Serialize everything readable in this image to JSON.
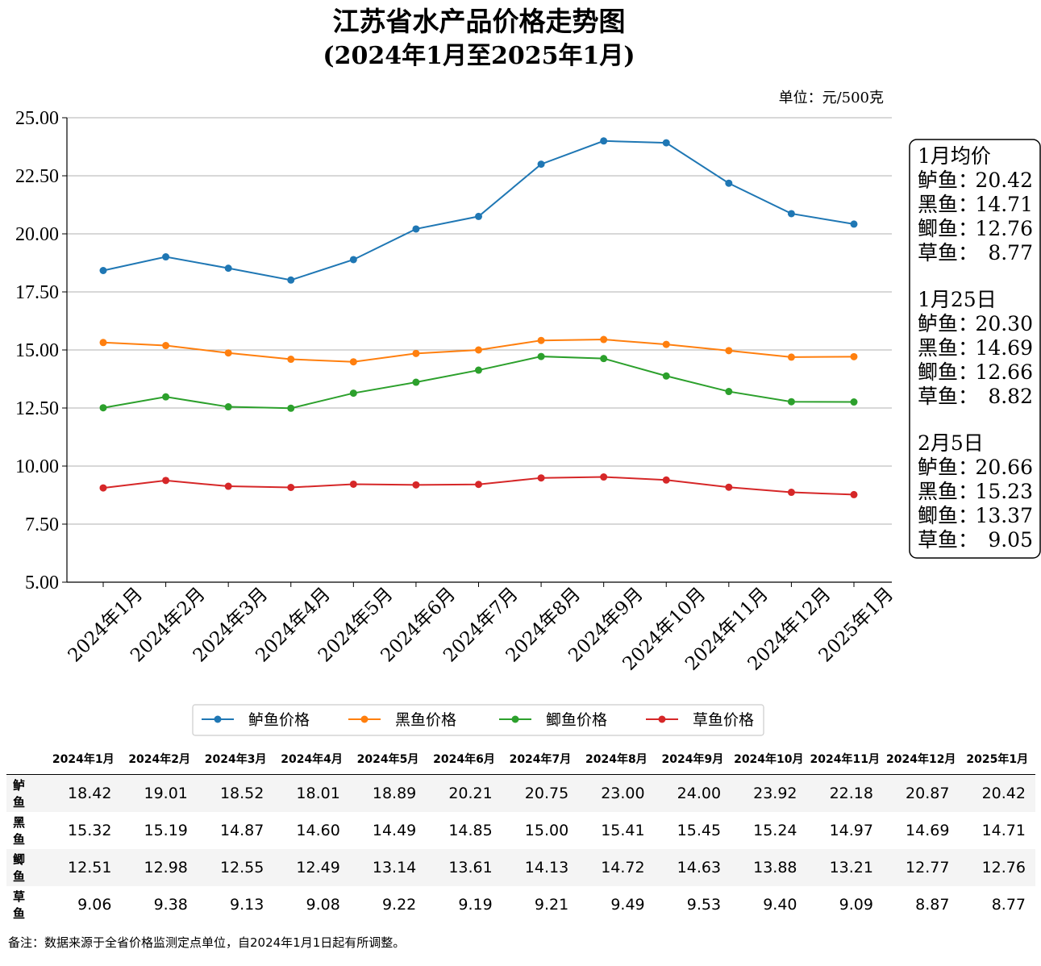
{
  "title": "江苏省水产品价格走势图",
  "subtitle": "(2024年1月至2025年1月)",
  "unit": "单位：元/500克",
  "chart_data": {
    "type": "line",
    "categories": [
      "2024年1月",
      "2024年2月",
      "2024年3月",
      "2024年4月",
      "2024年5月",
      "2024年6月",
      "2024年7月",
      "2024年8月",
      "2024年9月",
      "2024年10月",
      "2024年11月",
      "2024年12月",
      "2025年1月"
    ],
    "ylim": [
      5.0,
      25.0
    ],
    "yticks": [
      "5.00",
      "7.50",
      "10.00",
      "12.50",
      "15.00",
      "17.50",
      "20.00",
      "22.50",
      "25.00"
    ],
    "grid": "horizontal",
    "legend_position": "bottom",
    "series": [
      {
        "name": "鲈鱼价格",
        "color": "#1f77b4",
        "values": [
          18.42,
          19.01,
          18.52,
          18.01,
          18.89,
          20.21,
          20.75,
          23.0,
          24.0,
          23.92,
          22.18,
          20.87,
          20.42
        ]
      },
      {
        "name": "黑鱼价格",
        "color": "#ff7f0e",
        "values": [
          15.32,
          15.19,
          14.87,
          14.6,
          14.49,
          14.85,
          15.0,
          15.41,
          15.45,
          15.24,
          14.97,
          14.69,
          14.71
        ]
      },
      {
        "name": "鲫鱼价格",
        "color": "#2ca02c",
        "values": [
          12.51,
          12.98,
          12.55,
          12.49,
          13.14,
          13.61,
          14.13,
          14.72,
          14.63,
          13.88,
          13.21,
          12.77,
          12.76
        ]
      },
      {
        "name": "草鱼价格",
        "color": "#d62728",
        "values": [
          9.06,
          9.38,
          9.13,
          9.08,
          9.22,
          9.19,
          9.21,
          9.49,
          9.53,
          9.4,
          9.09,
          8.87,
          8.77
        ]
      }
    ]
  },
  "side_box": [
    {
      "heading": "1月均价",
      "lines": [
        [
          "鲈鱼：",
          "20.42"
        ],
        [
          "黑鱼：",
          "14.71"
        ],
        [
          "鲫鱼：",
          "12.76"
        ],
        [
          "草鱼：",
          "8.77"
        ]
      ]
    },
    {
      "heading": "1月25日",
      "lines": [
        [
          "鲈鱼：",
          "20.30"
        ],
        [
          "黑鱼：",
          "14.69"
        ],
        [
          "鲫鱼：",
          "12.66"
        ],
        [
          "草鱼：",
          "8.82"
        ]
      ]
    },
    {
      "heading": "2月5日",
      "lines": [
        [
          "鲈鱼：",
          "20.66"
        ],
        [
          "黑鱼：",
          "15.23"
        ],
        [
          "鲫鱼：",
          "13.37"
        ],
        [
          "草鱼：",
          "9.05"
        ]
      ]
    }
  ],
  "table": {
    "columns": [
      "2024年1月",
      "2024年2月",
      "2024年3月",
      "2024年4月",
      "2024年5月",
      "2024年6月",
      "2024年7月",
      "2024年8月",
      "2024年9月",
      "2024年10月",
      "2024年11月",
      "2024年12月",
      "2025年1月"
    ],
    "rows": [
      {
        "name": "鲈鱼",
        "values": [
          "18.42",
          "19.01",
          "18.52",
          "18.01",
          "18.89",
          "20.21",
          "20.75",
          "23.00",
          "24.00",
          "23.92",
          "22.18",
          "20.87",
          "20.42"
        ]
      },
      {
        "name": "黑鱼",
        "values": [
          "15.32",
          "15.19",
          "14.87",
          "14.60",
          "14.49",
          "14.85",
          "15.00",
          "15.41",
          "15.45",
          "15.24",
          "14.97",
          "14.69",
          "14.71"
        ]
      },
      {
        "name": "鲫鱼",
        "values": [
          "12.51",
          "12.98",
          "12.55",
          "12.49",
          "13.14",
          "13.61",
          "14.13",
          "14.72",
          "14.63",
          "13.88",
          "13.21",
          "12.77",
          "12.76"
        ]
      },
      {
        "name": "草鱼",
        "values": [
          "9.06",
          "9.38",
          "9.13",
          "9.08",
          "9.22",
          "9.19",
          "9.21",
          "9.49",
          "9.53",
          "9.40",
          "9.09",
          "8.87",
          "8.77"
        ]
      }
    ]
  },
  "footnote": "备注：数据来源于全省价格监测定点单位，自2024年1月1日起有所调整。"
}
